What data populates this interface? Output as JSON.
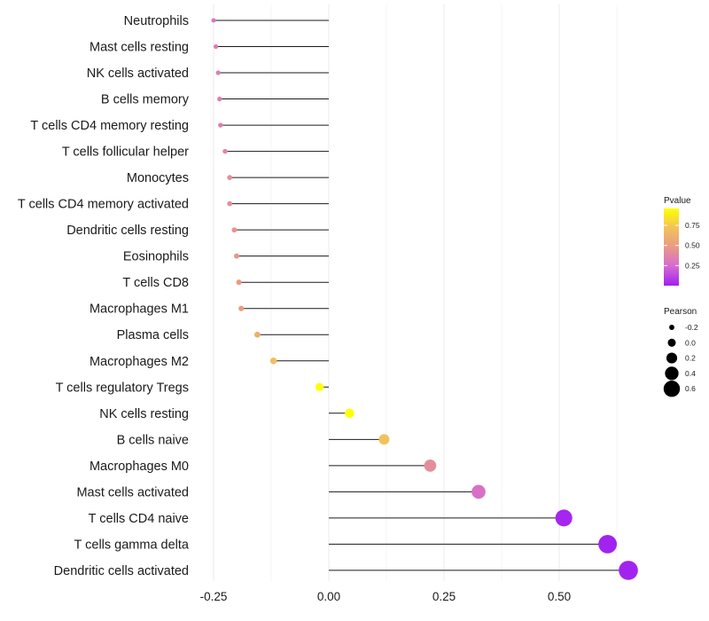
{
  "chart_data": {
    "type": "lollipop",
    "title": "",
    "xlabel": "",
    "ylabel": "",
    "xlim": [
      -0.27,
      0.68
    ],
    "x_ticks": [
      -0.25,
      0.0,
      0.25,
      0.5
    ],
    "x_tick_labels": [
      "-0.25",
      "0.00",
      "0.25",
      "0.50"
    ],
    "grid": true,
    "legend_position": "right",
    "categories": [
      "Neutrophils",
      "Mast cells resting",
      "NK cells activated",
      "B cells memory",
      "T cells CD4 memory resting",
      "T cells follicular helper",
      "Monocytes",
      "T cells CD4 memory activated",
      "Dendritic cells resting",
      "Eosinophils",
      "T cells CD8",
      "Macrophages M1",
      "Plasma cells",
      "Macrophages M2",
      "T cells regulatory  Tregs",
      "NK cells resting",
      "B cells naive",
      "Macrophages M0",
      "Mast cells activated",
      "T cells CD4 naive",
      "T cells gamma delta",
      "Dendritic cells activated"
    ],
    "pearson": [
      -0.25,
      -0.245,
      -0.24,
      -0.237,
      -0.235,
      -0.225,
      -0.215,
      -0.215,
      -0.205,
      -0.2,
      -0.195,
      -0.19,
      -0.155,
      -0.12,
      -0.02,
      0.045,
      0.12,
      0.22,
      0.325,
      0.51,
      0.605,
      0.65
    ],
    "pvalue": [
      0.3,
      0.33,
      0.33,
      0.34,
      0.35,
      0.38,
      0.42,
      0.42,
      0.45,
      0.47,
      0.48,
      0.5,
      0.6,
      0.7,
      0.96,
      0.96,
      0.72,
      0.42,
      0.27,
      0.02,
      0.01,
      0.01
    ],
    "color_legend": {
      "title": "Pvalue",
      "ticks": [
        0.75,
        0.5,
        0.25
      ],
      "tick_labels": [
        "0.75",
        "0.50",
        "0.25"
      ],
      "range": [
        0.0,
        0.96
      ],
      "colors": [
        "#a020f0",
        "#d66ad2",
        "#e99a86",
        "#f2c25a",
        "#ffff00"
      ]
    },
    "size_legend": {
      "title": "Pearson",
      "values": [
        -0.2,
        0.0,
        0.2,
        0.4,
        0.6
      ],
      "labels": [
        "-0.2",
        "0.0",
        "0.2",
        "0.4",
        "0.6"
      ]
    }
  }
}
